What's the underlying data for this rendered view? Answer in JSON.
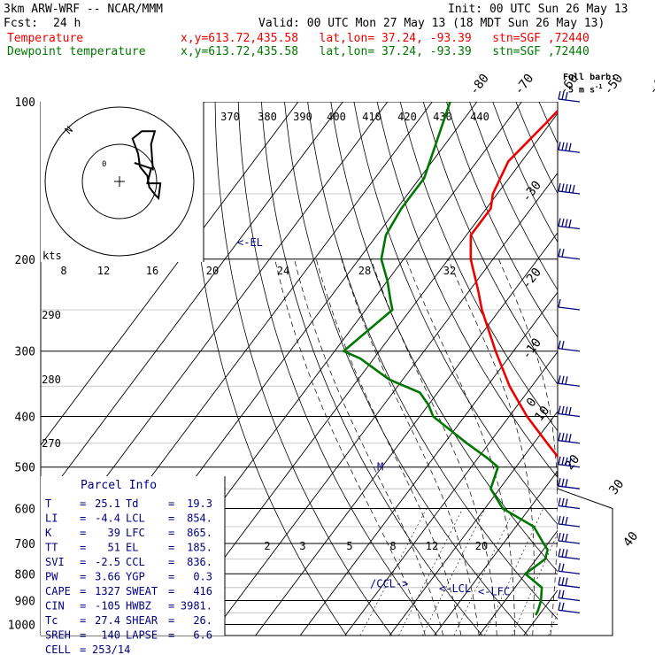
{
  "header": {
    "model": "3km ARW-WRF -- NCAR/MMM",
    "init": "Init: 00 UTC Sun 26 May 13",
    "fcst_label": "Fcst:",
    "fcst_value": "24 h",
    "valid": "Valid: 00 UTC Mon 27 May 13 (18 MDT Sun 26 May 13)",
    "temp_label": "Temperature",
    "dew_label": "Dewpoint temperature",
    "location": "x,y=613.72,435.58   lat,lon= 37.24, -93.39   stn=SGF ,72440",
    "full_barb": "Full barb:",
    "full_barb_unit": "5 m s",
    "full_barb_sup": "-1"
  },
  "colors": {
    "temperature": "#ee0000",
    "dewpoint": "#007700",
    "text": "#000080",
    "black": "#000000",
    "red": "#ee0000"
  },
  "chart_data": {
    "type": "line",
    "chart_kind": "skew-T log-p sounding",
    "pressure_ticks": [
      100,
      200,
      300,
      400,
      500,
      600,
      700,
      800,
      900,
      1000
    ],
    "pressure_levels_drawn": [
      100,
      150,
      200,
      250,
      300,
      350,
      400,
      450,
      500,
      550,
      600,
      650,
      700,
      750,
      800,
      850,
      900,
      950,
      1000
    ],
    "isotherm_labels": [
      -80,
      -70,
      -60,
      -50,
      -40,
      -30,
      -20,
      -10,
      0,
      10,
      20,
      30,
      40
    ],
    "theta_labels_top": [
      370,
      380,
      390,
      400,
      410,
      420,
      430,
      440
    ],
    "theta_labels_left": [
      290,
      280,
      270
    ],
    "mixing_ratio_labels": [
      2,
      3,
      5,
      8,
      12,
      20
    ],
    "temperature": {
      "name": "Temperature",
      "p": [
        100,
        110,
        130,
        150,
        160,
        180,
        200,
        230,
        250,
        300,
        350,
        400,
        450,
        480,
        500,
        550,
        600,
        650,
        700,
        750,
        800,
        850,
        900,
        940,
        960
      ],
      "t": [
        -60,
        -61,
        -63,
        -61,
        -59,
        -59,
        -55,
        -48,
        -44,
        -34,
        -25,
        -16,
        -7,
        -2,
        1,
        6,
        9,
        12,
        16,
        18,
        20,
        21,
        23,
        24.5,
        25.1
      ]
    },
    "dewpoint": {
      "name": "Dewpoint temperature",
      "p": [
        100,
        140,
        150,
        160,
        180,
        200,
        220,
        240,
        250,
        300,
        310,
        340,
        360,
        380,
        400,
        450,
        480,
        500,
        550,
        600,
        650,
        700,
        720,
        750,
        800,
        850,
        900,
        940,
        960
      ],
      "td": [
        -86,
        -79,
        -79,
        -79,
        -78,
        -75,
        -70,
        -66,
        -64,
        -68,
        -63,
        -53,
        -44,
        -40,
        -37,
        -25,
        -18,
        -14,
        -12,
        -6,
        4,
        9,
        11,
        12,
        10,
        16,
        18,
        19,
        19.3
      ]
    },
    "wind_barbs": [
      {
        "p": 100,
        "speed_ms": 15
      },
      {
        "p": 125,
        "speed_ms": 20
      },
      {
        "p": 150,
        "speed_ms": 25
      },
      {
        "p": 175,
        "speed_ms": 20
      },
      {
        "p": 200,
        "speed_ms": 10
      },
      {
        "p": 250,
        "speed_ms": 5
      },
      {
        "p": 300,
        "speed_ms": 10
      },
      {
        "p": 350,
        "speed_ms": 15
      },
      {
        "p": 400,
        "speed_ms": 20
      },
      {
        "p": 450,
        "speed_ms": 20
      },
      {
        "p": 500,
        "speed_ms": 20
      },
      {
        "p": 550,
        "speed_ms": 15
      },
      {
        "p": 600,
        "speed_ms": 15
      },
      {
        "p": 650,
        "speed_ms": 15
      },
      {
        "p": 700,
        "speed_ms": 15
      },
      {
        "p": 750,
        "speed_ms": 15
      },
      {
        "p": 800,
        "speed_ms": 10
      },
      {
        "p": 850,
        "speed_ms": 15
      },
      {
        "p": 900,
        "speed_ms": 10
      },
      {
        "p": 950,
        "speed_ms": 10
      }
    ],
    "markers": [
      {
        "label": "<-EL",
        "p": 185
      },
      {
        "label": "M",
        "p": 500
      },
      {
        "label": "/CCL->",
        "p": 836
      },
      {
        "label": "<-LCL",
        "p": 854
      },
      {
        "label": "<-LFC",
        "p": 865
      }
    ],
    "hodograph": {
      "unit_label": "kts",
      "rings_kts": [
        20,
        40
      ],
      "ring_labels": [
        "8",
        "12",
        "16",
        "20",
        "24",
        "28",
        "32"
      ],
      "north_label": "N",
      "small_label": "0",
      "path_kts": [
        [
          8,
          10
        ],
        [
          14,
          8
        ],
        [
          17,
          7
        ],
        [
          15,
          -1
        ],
        [
          22,
          -1
        ],
        [
          21,
          -9
        ],
        [
          19,
          -7
        ],
        [
          16,
          -3
        ],
        [
          15,
          3
        ],
        [
          11,
          8
        ],
        [
          10,
          15
        ],
        [
          7,
          23
        ],
        [
          12,
          27
        ],
        [
          19,
          27
        ],
        [
          17,
          20
        ],
        [
          18,
          6
        ]
      ]
    },
    "parcel_info": {
      "title": "Parcel Info",
      "rows": [
        [
          "T",
          "25.1",
          "Td",
          "19.3"
        ],
        [
          "LI",
          "-4.4",
          "LCL",
          "854."
        ],
        [
          "K",
          "39",
          "LFC",
          "865."
        ],
        [
          "TT",
          "51",
          "EL",
          "185."
        ],
        [
          "SVI",
          "-2.5",
          "CCL",
          "836."
        ],
        [
          "PW",
          "3.66",
          "YGP",
          "0.3"
        ],
        [
          "CAPE",
          "1327",
          "SWEAT",
          "416"
        ],
        [
          "CIN",
          "-105",
          "HWBZ",
          "3981."
        ],
        [
          "Tc",
          "27.4",
          "SHEAR",
          "26."
        ],
        [
          "SREH",
          "140",
          "LAPSE",
          "6.6"
        ]
      ],
      "cell_label": "CELL",
      "cell_value": "253/14"
    }
  }
}
